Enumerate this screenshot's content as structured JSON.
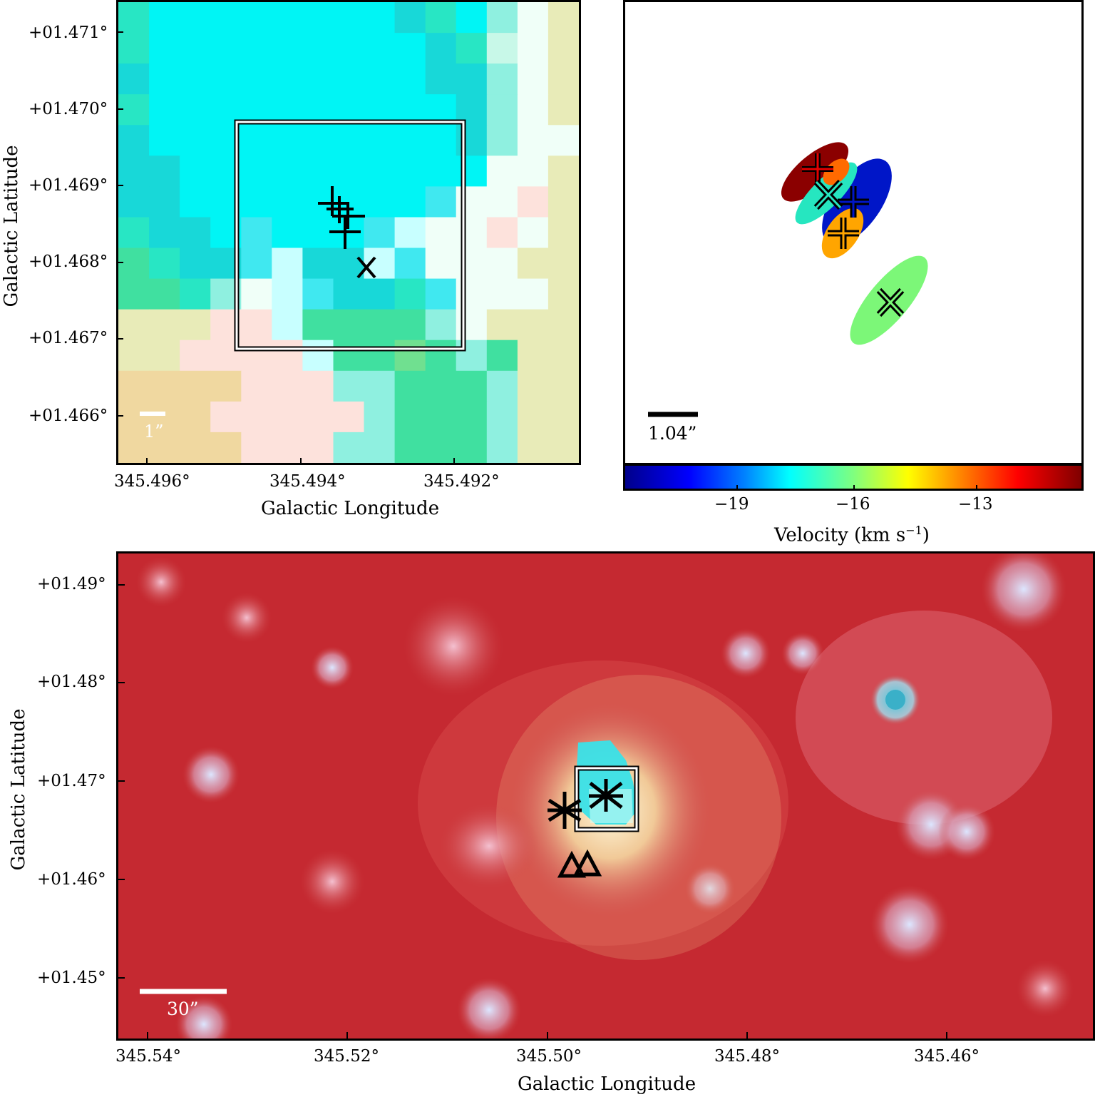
{
  "top_left": {
    "y_ticks": [
      "+01.471°",
      "+01.470°",
      "+01.469°",
      "+01.468°",
      "+01.467°",
      "+01.466°"
    ],
    "x_ticks": [
      "345.496°",
      "345.494°",
      "345.492°"
    ],
    "xlabel": "Galactic Longitude",
    "ylabel": "Galactic Latitude",
    "scalebar_label": "1”"
  },
  "top_right": {
    "scalebar_label": "1.04”",
    "colorbar_ticks": [
      "−19",
      "−16",
      "−13"
    ],
    "colorbar_label": "Velocity (km s",
    "colorbar_label_sup": "−1",
    "colorbar_label_end": ")"
  },
  "bottom": {
    "y_ticks": [
      "+01.49°",
      "+01.48°",
      "+01.47°",
      "+01.46°",
      "+01.45°"
    ],
    "x_ticks": [
      "345.54°",
      "345.52°",
      "345.50°",
      "345.48°",
      "345.46°"
    ],
    "xlabel": "Galactic Longitude",
    "ylabel": "Galactic Latitude",
    "scalebar_label": "30”"
  }
}
